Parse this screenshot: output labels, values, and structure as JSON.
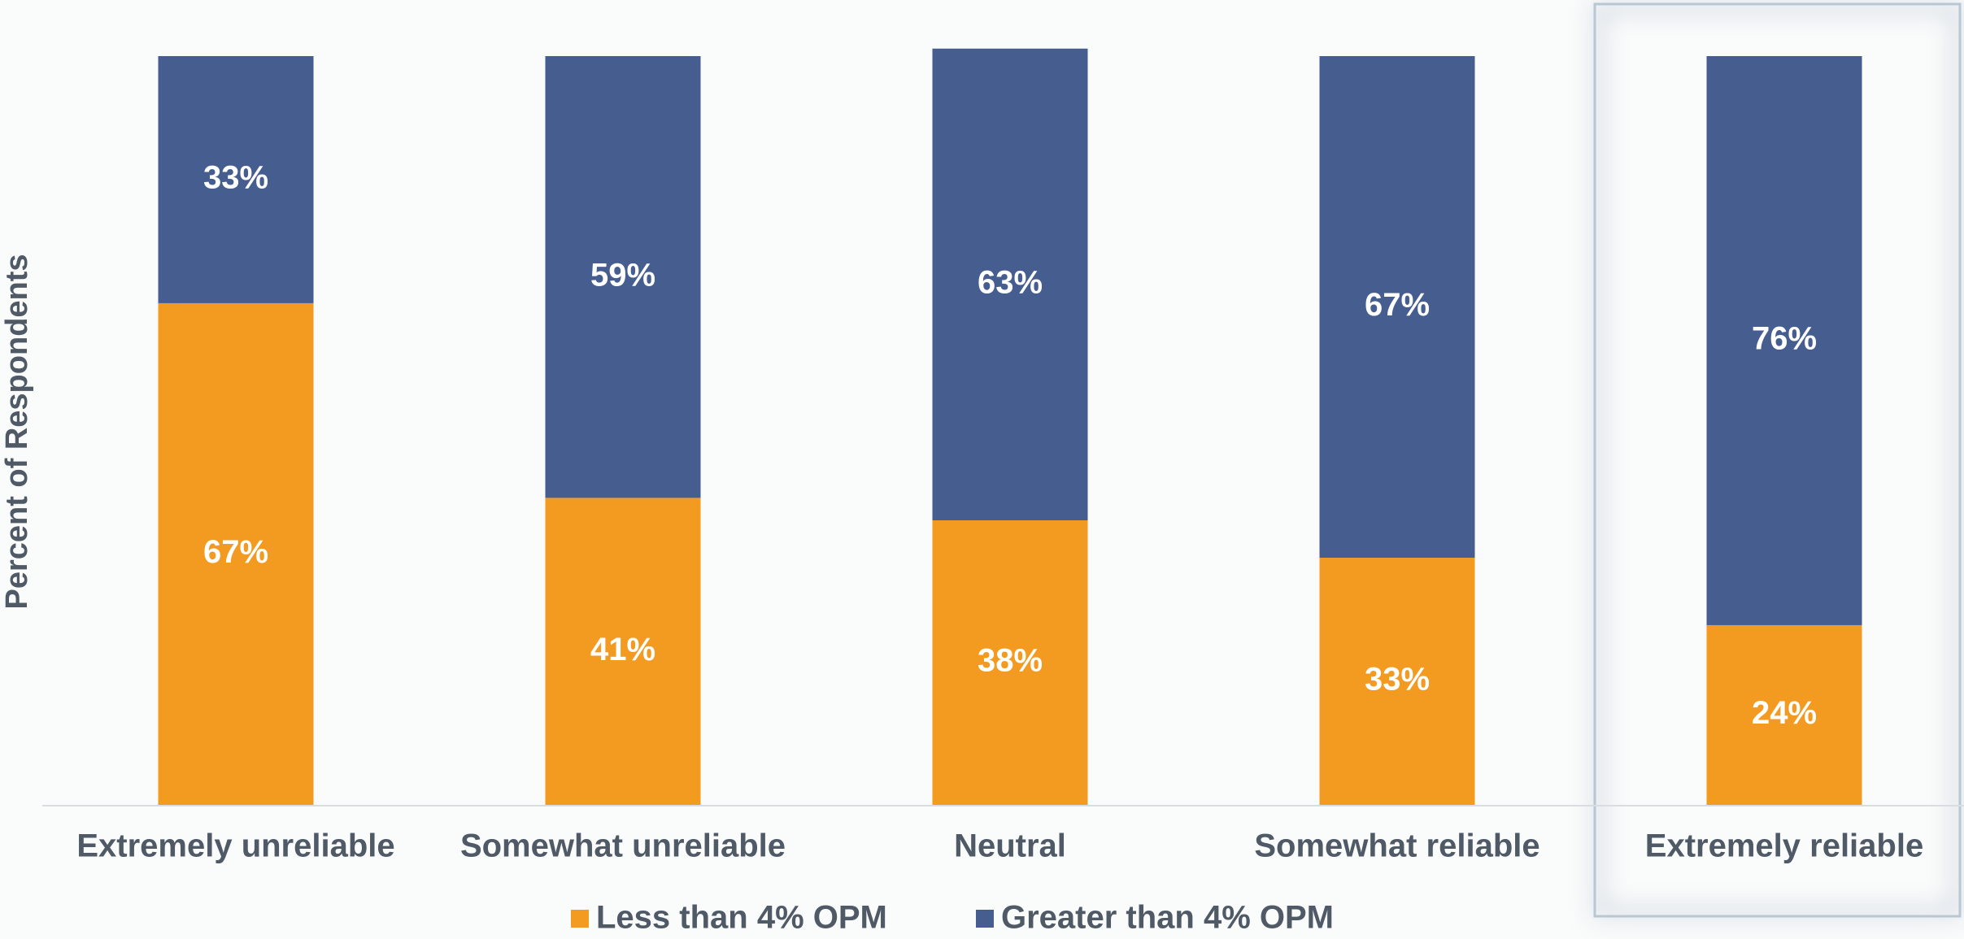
{
  "chart_data": {
    "type": "stacked_bar",
    "y_label": "Percent of Respondents",
    "categories": [
      "Extremely unreliable",
      "Somewhat unreliable",
      "Neutral",
      "Somewhat reliable",
      "Extremely reliable"
    ],
    "series": [
      {
        "name": "Less than 4% OPM",
        "color": "#f39b21",
        "values": [
          67,
          41,
          38,
          33,
          24
        ],
        "value_labels": [
          "67%",
          "41%",
          "38%",
          "33%",
          "24%"
        ]
      },
      {
        "name": "Greater than 4% OPM",
        "color": "#465e8f",
        "values": [
          33,
          59,
          63,
          67,
          76
        ],
        "value_labels": [
          "33%",
          "59%",
          "63%",
          "67%",
          "76%"
        ]
      }
    ],
    "ylim": [
      0,
      100
    ],
    "legend": "bottom"
  }
}
